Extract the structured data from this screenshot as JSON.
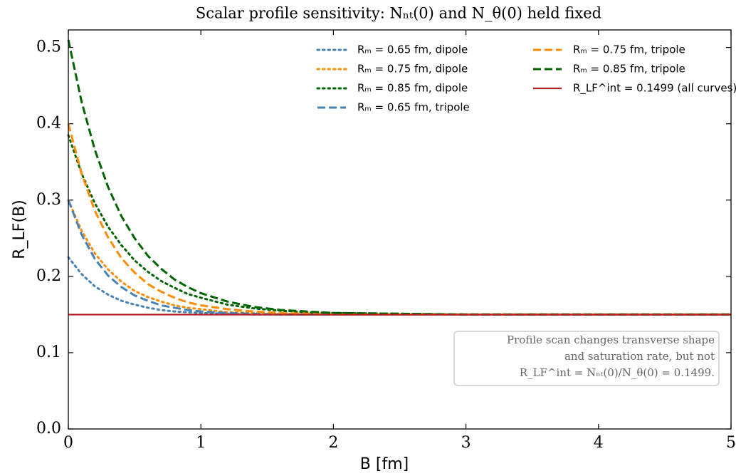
{
  "chart_data": {
    "type": "line",
    "title": "Scalar profile sensitivity: Nₙₜ(0) and N_θ(0) held fixed",
    "x_label": "B [fm]",
    "y_label": "R_LF(B)",
    "x": [
      0,
      0.1,
      0.2,
      0.3,
      0.4,
      0.5,
      0.6,
      0.7,
      0.8,
      0.9,
      1.0,
      1.2,
      1.4,
      1.6,
      1.8,
      2.0,
      2.5,
      3,
      3.5,
      4,
      4.5,
      5
    ],
    "series": [
      {
        "name": "Rₘ = 0.65 fm, dipole",
        "color": "#4682b4",
        "linestyle": "dotted",
        "values": [
          0.225,
          0.203,
          0.187,
          0.176,
          0.168,
          0.163,
          0.159,
          0.156,
          0.154,
          0.153,
          0.152,
          0.151,
          0.15,
          0.15,
          0.15,
          0.15,
          0.15,
          0.15,
          0.15,
          0.15,
          0.15,
          0.15
        ]
      },
      {
        "name": "Rₘ = 0.75 fm, dipole",
        "color": "#ff8c00",
        "linestyle": "dotted",
        "values": [
          0.3,
          0.26,
          0.23,
          0.209,
          0.193,
          0.181,
          0.173,
          0.167,
          0.162,
          0.159,
          0.157,
          0.153,
          0.152,
          0.151,
          0.15,
          0.15,
          0.15,
          0.15,
          0.15,
          0.15,
          0.15,
          0.15
        ]
      },
      {
        "name": "Rₘ = 0.85 fm, dipole",
        "color": "#006400",
        "linestyle": "dotted",
        "values": [
          0.385,
          0.335,
          0.296,
          0.265,
          0.241,
          0.221,
          0.206,
          0.194,
          0.185,
          0.177,
          0.172,
          0.163,
          0.158,
          0.155,
          0.153,
          0.152,
          0.151,
          0.15,
          0.15,
          0.15,
          0.15,
          0.15
        ]
      },
      {
        "name": "Rₘ = 0.65 fm, tripole",
        "color": "#4682b4",
        "linestyle": "dashed",
        "values": [
          0.3,
          0.255,
          0.223,
          0.201,
          0.186,
          0.175,
          0.168,
          0.162,
          0.159,
          0.156,
          0.154,
          0.152,
          0.151,
          0.15,
          0.15,
          0.15,
          0.15,
          0.15,
          0.15,
          0.15,
          0.15,
          0.15
        ]
      },
      {
        "name": "Rₘ = 0.75 fm, tripole",
        "color": "#ff8c00",
        "linestyle": "dashed",
        "values": [
          0.4,
          0.335,
          0.286,
          0.251,
          0.224,
          0.205,
          0.19,
          0.18,
          0.172,
          0.166,
          0.162,
          0.157,
          0.154,
          0.152,
          0.151,
          0.15,
          0.15,
          0.15,
          0.15,
          0.15,
          0.15,
          0.15
        ]
      },
      {
        "name": "Rₘ = 0.85 fm, tripole",
        "color": "#006400",
        "linestyle": "dashed",
        "values": [
          0.51,
          0.429,
          0.366,
          0.317,
          0.279,
          0.25,
          0.227,
          0.21,
          0.196,
          0.186,
          0.178,
          0.167,
          0.16,
          0.156,
          0.154,
          0.152,
          0.151,
          0.15,
          0.15,
          0.15,
          0.15,
          0.15
        ]
      },
      {
        "name": "R_LF^int = 0.1499 (all curves)",
        "color": "#b22222",
        "linestyle": "solid",
        "values": [
          0.1499,
          0.1499,
          0.1499,
          0.1499,
          0.1499,
          0.1499,
          0.1499,
          0.1499,
          0.1499,
          0.1499,
          0.1499,
          0.1499,
          0.1499,
          0.1499,
          0.1499,
          0.1499,
          0.1499,
          0.1499,
          0.1499,
          0.1499,
          0.1499,
          0.1499
        ]
      }
    ],
    "xlim": [
      0,
      5
    ],
    "xticks": [
      0,
      1,
      2,
      3,
      4,
      5
    ],
    "ylim": [
      0,
      0.523
    ],
    "yticks": [
      {
        "value": 0,
        "label": "0.0"
      },
      0.1,
      0.2,
      0.3,
      0.4,
      0.5
    ],
    "legend": "upper right",
    "annotation": [
      "Profile scan changes transverse shape",
      "and saturation rate, but not",
      "R_LF^int = Nₙₜ(0)/N_θ(0) = 0.1499."
    ]
  }
}
